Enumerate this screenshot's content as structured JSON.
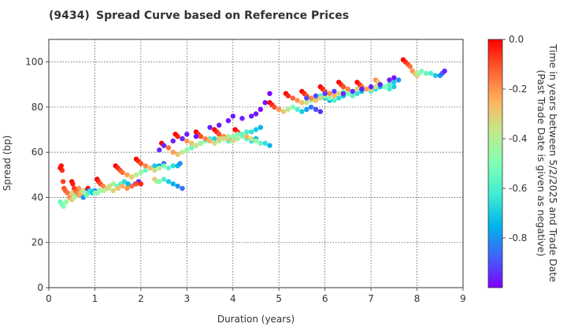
{
  "chart_data": {
    "type": "scatter",
    "title_code": "(9434)",
    "title": "Spread Curve based on Reference Prices",
    "xlabel": "Duration (years)",
    "ylabel": "Spread (bp)",
    "xlim": [
      0,
      9
    ],
    "ylim": [
      0,
      110
    ],
    "xticks": [
      "0",
      "1",
      "2",
      "3",
      "4",
      "5",
      "6",
      "7",
      "8",
      "9"
    ],
    "yticks": [
      "0",
      "20",
      "40",
      "60",
      "80",
      "100"
    ],
    "grid": true,
    "colormap": "rainbow",
    "colorbar": {
      "label_line1": "Time in years between 5/2/2025 and Trade Date",
      "label_line2": "(Past Trade Date is given as negative)",
      "range": [
        -1.0,
        0.0
      ],
      "ticks": [
        "0.0",
        "-0.2",
        "-0.4",
        "-0.6",
        "-0.8"
      ]
    },
    "series": [
      {
        "x": [
          0.25,
          0.28,
          0.32,
          0.38,
          0.45,
          0.5,
          0.55,
          0.6,
          0.65,
          0.7,
          0.75,
          0.8,
          0.85
        ],
        "y": [
          38,
          37,
          36,
          38,
          40,
          42,
          41,
          43,
          44,
          42,
          41,
          43,
          44
        ],
        "t": [
          -0.55,
          -0.52,
          -0.5,
          -0.45,
          -0.4,
          -0.35,
          -0.3,
          -0.25,
          -0.2,
          -0.15,
          -0.1,
          -0.05,
          -0.02
        ]
      },
      {
        "x": [
          0.25,
          0.27,
          0.29,
          0.31,
          0.33,
          0.36,
          0.4,
          0.45,
          0.5,
          0.55,
          0.6,
          0.65,
          0.7,
          0.75,
          0.8,
          0.85
        ],
        "y": [
          53,
          54,
          52,
          47,
          44,
          43,
          42,
          40,
          39,
          40,
          41,
          42,
          41,
          40,
          42,
          43
        ],
        "t": [
          0,
          -0.02,
          -0.05,
          -0.08,
          -0.1,
          -0.12,
          -0.15,
          -0.2,
          -0.3,
          -0.4,
          -0.5,
          -0.6,
          -0.7,
          -0.8,
          -0.85,
          -0.9
        ]
      },
      {
        "x": [
          0.5,
          0.52,
          0.55,
          0.58,
          0.62,
          0.66,
          0.7,
          0.74,
          0.78,
          0.82,
          0.86,
          0.9,
          0.95,
          1.0,
          1.05,
          1.1
        ],
        "y": [
          47,
          46,
          44,
          43,
          42,
          41,
          42,
          43,
          42,
          41,
          42,
          43,
          42,
          43,
          42,
          43
        ],
        "t": [
          0,
          -0.04,
          -0.08,
          -0.12,
          -0.17,
          -0.22,
          -0.28,
          -0.35,
          -0.42,
          -0.5,
          -0.58,
          -0.65,
          -0.72,
          -0.8,
          -0.87,
          -0.93
        ]
      },
      {
        "x": [
          1.05,
          1.08,
          1.12,
          1.18,
          1.25,
          1.32,
          1.4,
          1.48,
          1.56,
          1.64,
          1.72,
          1.8,
          1.88,
          1.95
        ],
        "y": [
          48,
          47,
          46,
          45,
          44,
          45,
          46,
          45,
          46,
          47,
          46,
          45,
          46,
          47
        ],
        "t": [
          0,
          -0.05,
          -0.1,
          -0.18,
          -0.26,
          -0.34,
          -0.42,
          -0.5,
          -0.58,
          -0.66,
          -0.74,
          -0.82,
          -0.9,
          -0.96
        ]
      },
      {
        "x": [
          1.0,
          1.05,
          1.1,
          1.2,
          1.3,
          1.4,
          1.5,
          1.6,
          1.7,
          1.8,
          1.9,
          2.0
        ],
        "y": [
          42,
          42,
          43,
          43,
          44,
          43,
          44,
          45,
          44,
          45,
          46,
          46
        ],
        "t": [
          -0.5,
          -0.48,
          -0.45,
          -0.4,
          -0.36,
          -0.32,
          -0.28,
          -0.24,
          -0.2,
          -0.15,
          -0.1,
          -0.05
        ]
      },
      {
        "x": [
          1.45,
          1.5,
          1.55,
          1.6,
          1.7,
          1.8,
          1.9,
          2.0,
          2.1,
          2.2,
          2.3,
          2.4,
          2.5
        ],
        "y": [
          54,
          53,
          52,
          51,
          50,
          49,
          50,
          51,
          52,
          53,
          54,
          54,
          55
        ],
        "t": [
          0,
          -0.05,
          -0.1,
          -0.15,
          -0.22,
          -0.3,
          -0.38,
          -0.46,
          -0.54,
          -0.62,
          -0.7,
          -0.78,
          -0.86
        ]
      },
      {
        "x": [
          1.9,
          1.95,
          2.0,
          2.1,
          2.2,
          2.3,
          2.4,
          2.5,
          2.6,
          2.7,
          2.8,
          2.85
        ],
        "y": [
          57,
          56,
          55,
          54,
          53,
          52,
          53,
          54,
          53,
          54,
          54,
          55
        ],
        "t": [
          0,
          -0.05,
          -0.1,
          -0.18,
          -0.26,
          -0.34,
          -0.42,
          -0.5,
          -0.58,
          -0.66,
          -0.74,
          -0.8
        ]
      },
      {
        "x": [
          2.3,
          2.35,
          2.4,
          2.5,
          2.6,
          2.7,
          2.8,
          2.9
        ],
        "y": [
          48,
          47,
          47,
          48,
          47,
          46,
          45,
          44
        ],
        "t": [
          -0.3,
          -0.4,
          -0.5,
          -0.6,
          -0.7,
          -0.75,
          -0.8,
          -0.85
        ]
      },
      {
        "x": [
          2.45,
          2.5,
          2.6,
          2.7,
          2.8,
          2.9,
          3.0,
          3.1,
          3.2,
          3.3
        ],
        "y": [
          64,
          63,
          62,
          60,
          59,
          60,
          61,
          62,
          63,
          64
        ],
        "t": [
          0,
          -0.06,
          -0.14,
          -0.22,
          -0.3,
          -0.38,
          -0.46,
          -0.54,
          -0.62,
          -0.7
        ]
      },
      {
        "x": [
          2.75,
          2.8,
          2.9,
          3.0,
          3.1,
          3.2,
          3.3,
          3.4,
          3.5,
          3.6
        ],
        "y": [
          68,
          67,
          66,
          65,
          64,
          63,
          64,
          65,
          66,
          66
        ],
        "t": [
          0,
          -0.04,
          -0.12,
          -0.2,
          -0.28,
          -0.36,
          -0.44,
          -0.52,
          -0.6,
          -0.68
        ]
      },
      {
        "x": [
          3.2,
          3.25,
          3.3,
          3.4,
          3.5,
          3.6,
          3.7,
          3.8,
          3.9,
          4.0
        ],
        "y": [
          69,
          68,
          67,
          66,
          65,
          64,
          65,
          66,
          65,
          66
        ],
        "t": [
          0,
          -0.05,
          -0.1,
          -0.18,
          -0.26,
          -0.34,
          -0.42,
          -0.5,
          -0.58,
          -0.66
        ]
      },
      {
        "x": [
          3.6,
          3.65,
          3.7,
          3.8,
          3.9,
          4.0,
          4.1,
          4.2,
          4.3,
          4.4,
          4.5
        ],
        "y": [
          70,
          69,
          68,
          67,
          66,
          65,
          66,
          67,
          66,
          65,
          66
        ],
        "t": [
          0,
          -0.05,
          -0.1,
          -0.18,
          -0.26,
          -0.34,
          -0.42,
          -0.5,
          -0.58,
          -0.66,
          -0.74
        ]
      },
      {
        "x": [
          4.05,
          4.1,
          4.2,
          4.3,
          4.4,
          4.5,
          4.6,
          4.7,
          4.8
        ],
        "y": [
          70,
          69,
          68,
          67,
          66,
          65,
          64,
          64,
          63
        ],
        "t": [
          0,
          -0.05,
          -0.15,
          -0.25,
          -0.35,
          -0.45,
          -0.55,
          -0.65,
          -0.75
        ]
      },
      {
        "x": [
          3.7,
          3.8,
          3.9,
          4.0,
          4.1,
          4.2,
          4.3,
          4.4,
          4.5,
          4.6
        ],
        "y": [
          66,
          66,
          67,
          67,
          68,
          68,
          69,
          69,
          70,
          71
        ],
        "t": [
          -0.3,
          -0.35,
          -0.4,
          -0.45,
          -0.5,
          -0.55,
          -0.6,
          -0.65,
          -0.7,
          -0.75
        ]
      },
      {
        "x": [
          2.4,
          2.5,
          2.7,
          2.9,
          3.0,
          3.2,
          3.5,
          3.7,
          3.9,
          4.0,
          4.2,
          4.4,
          4.5,
          4.6,
          4.7,
          4.8
        ],
        "y": [
          61,
          63,
          65,
          66,
          68,
          67,
          71,
          72,
          74,
          76,
          75,
          76,
          77,
          79,
          82,
          86
        ],
        "t": [
          -0.95,
          -0.95,
          -0.96,
          -0.95,
          -0.96,
          -0.97,
          -0.96,
          -0.97,
          -0.98,
          -0.97,
          -0.96,
          -0.97,
          -0.98,
          -0.99,
          -0.98,
          -0.99
        ]
      },
      {
        "x": [
          4.8,
          4.85,
          4.9,
          5.0,
          5.1,
          5.2,
          5.3,
          5.4,
          5.5,
          5.6,
          5.7,
          5.8,
          5.9
        ],
        "y": [
          82,
          81,
          80,
          79,
          78,
          79,
          80,
          79,
          78,
          79,
          80,
          79,
          78
        ],
        "t": [
          0,
          -0.05,
          -0.1,
          -0.2,
          -0.3,
          -0.4,
          -0.5,
          -0.6,
          -0.7,
          -0.78,
          -0.85,
          -0.9,
          -0.95
        ]
      },
      {
        "x": [
          5.15,
          5.2,
          5.3,
          5.4,
          5.5,
          5.6,
          5.7,
          5.8,
          5.9,
          6.0,
          6.1
        ],
        "y": [
          86,
          85,
          84,
          83,
          82,
          82,
          83,
          84,
          85,
          84,
          83
        ],
        "t": [
          0,
          -0.05,
          -0.12,
          -0.2,
          -0.28,
          -0.36,
          -0.44,
          -0.52,
          -0.6,
          -0.68,
          -0.76
        ]
      },
      {
        "x": [
          5.5,
          5.55,
          5.6,
          5.7,
          5.8,
          5.9,
          6.0,
          6.1,
          6.2,
          6.3,
          6.4
        ],
        "y": [
          87,
          86,
          85,
          84,
          83,
          84,
          85,
          84,
          83,
          84,
          85
        ],
        "t": [
          0,
          -0.05,
          -0.1,
          -0.18,
          -0.26,
          -0.34,
          -0.42,
          -0.5,
          -0.58,
          -0.66,
          -0.74
        ]
      },
      {
        "x": [
          5.9,
          5.95,
          6.0,
          6.1,
          6.2,
          6.3,
          6.4,
          6.5,
          6.6,
          6.7,
          6.8
        ],
        "y": [
          89,
          88,
          87,
          86,
          85,
          86,
          87,
          86,
          85,
          86,
          87
        ],
        "t": [
          0,
          -0.05,
          -0.1,
          -0.18,
          -0.26,
          -0.34,
          -0.42,
          -0.5,
          -0.58,
          -0.66,
          -0.74
        ]
      },
      {
        "x": [
          6.3,
          6.35,
          6.4,
          6.5,
          6.6,
          6.7,
          6.8,
          6.9,
          7.0,
          7.1,
          7.2
        ],
        "y": [
          91,
          90,
          89,
          88,
          87,
          88,
          89,
          88,
          87,
          88,
          89
        ],
        "t": [
          0,
          -0.05,
          -0.1,
          -0.18,
          -0.26,
          -0.34,
          -0.42,
          -0.5,
          -0.58,
          -0.66,
          -0.74
        ]
      },
      {
        "x": [
          6.7,
          6.75,
          6.8,
          6.9,
          7.0,
          7.1,
          7.2,
          7.3,
          7.4,
          7.5
        ],
        "y": [
          91,
          90,
          89,
          88,
          88,
          89,
          90,
          89,
          88,
          89
        ],
        "t": [
          0,
          -0.06,
          -0.14,
          -0.22,
          -0.3,
          -0.38,
          -0.46,
          -0.54,
          -0.62,
          -0.7
        ]
      },
      {
        "x": [
          7.1,
          7.15,
          7.2,
          7.3,
          7.4,
          7.5,
          7.6
        ],
        "y": [
          92,
          91,
          90,
          89,
          90,
          91,
          92
        ],
        "t": [
          -0.2,
          -0.3,
          -0.4,
          -0.5,
          -0.6,
          -0.7,
          -0.8
        ]
      },
      {
        "x": [
          5.6,
          5.8,
          6.0,
          6.2,
          6.4,
          6.6,
          6.8,
          7.0,
          7.2,
          7.4,
          7.5
        ],
        "y": [
          84,
          85,
          86,
          87,
          86,
          87,
          88,
          89,
          90,
          92,
          93
        ],
        "t": [
          -0.9,
          -0.9,
          -0.92,
          -0.93,
          -0.94,
          -0.94,
          -0.95,
          -0.96,
          -0.96,
          -0.97,
          -0.98
        ]
      },
      {
        "x": [
          7.7,
          7.75,
          7.8,
          7.85,
          7.9,
          7.95,
          8.0
        ],
        "y": [
          101,
          100,
          99,
          98,
          96,
          95,
          94
        ],
        "t": [
          0,
          -0.05,
          -0.1,
          -0.15,
          -0.2,
          -0.25,
          -0.3
        ]
      },
      {
        "x": [
          8.0,
          8.05,
          8.1,
          8.2,
          8.3,
          8.4,
          8.5,
          8.55,
          8.6
        ],
        "y": [
          95,
          95,
          96,
          95,
          95,
          94,
          94,
          95,
          96
        ],
        "t": [
          -0.4,
          -0.45,
          -0.5,
          -0.55,
          -0.6,
          -0.7,
          -0.8,
          -0.88,
          -0.95
        ]
      }
    ]
  }
}
